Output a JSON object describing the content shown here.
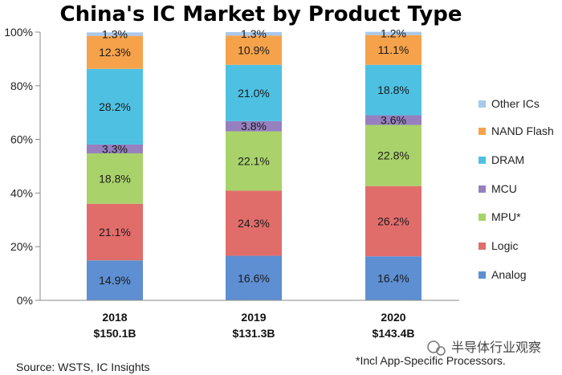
{
  "chart_data": {
    "type": "bar",
    "stacked": true,
    "title": "China's IC Market by Product Type",
    "categories": [
      "2018",
      "2019",
      "2020"
    ],
    "category_sublabels": [
      "$150.1B",
      "$131.3B",
      "$143.4B"
    ],
    "ylim": [
      0,
      100
    ],
    "yticks": [
      "0%",
      "20%",
      "40%",
      "60%",
      "80%",
      "100%"
    ],
    "grid": false,
    "legend_position": "right",
    "series": [
      {
        "name": "Analog",
        "color": "#5d8fd2",
        "values": [
          14.9,
          16.6,
          16.4
        ],
        "labels": [
          "14.9%",
          "16.6%",
          "16.4%"
        ]
      },
      {
        "name": "Logic",
        "color": "#e16d6b",
        "values": [
          21.1,
          24.3,
          26.2
        ],
        "labels": [
          "21.1%",
          "24.3%",
          "26.2%"
        ]
      },
      {
        "name": "MPU*",
        "color": "#a9d26a",
        "values": [
          18.8,
          22.1,
          22.8
        ],
        "labels": [
          "18.8%",
          "22.1%",
          "22.8%"
        ]
      },
      {
        "name": "MCU",
        "color": "#9680bf",
        "values": [
          3.3,
          3.8,
          3.6
        ],
        "labels": [
          "3.3%",
          "3.8%",
          "3.6%"
        ]
      },
      {
        "name": "DRAM",
        "color": "#4ec1e3",
        "values": [
          28.2,
          21.0,
          18.8
        ],
        "labels": [
          "28.2%",
          "21.0%",
          "18.8%"
        ]
      },
      {
        "name": "NAND Flash",
        "color": "#f6a24b",
        "values": [
          12.3,
          10.9,
          11.1
        ],
        "labels": [
          "12.3%",
          "10.9%",
          "11.1%"
        ]
      },
      {
        "name": "Other ICs",
        "color": "#a9c8ea",
        "values": [
          1.3,
          1.3,
          1.2
        ],
        "labels": [
          "1.3%",
          "1.3%",
          "1.2%"
        ]
      }
    ]
  },
  "footer": {
    "source": "Source:  WSTS, IC Insights",
    "note": "*Incl App-Specific Processors.",
    "watermark": "半导体行业观察"
  }
}
